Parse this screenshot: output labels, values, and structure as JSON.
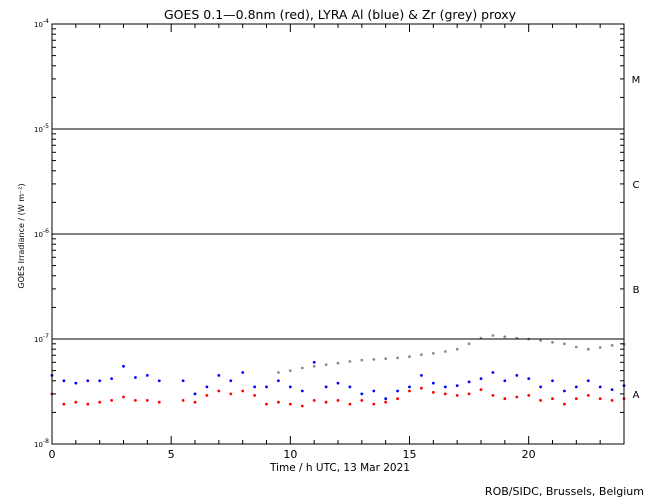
{
  "chart_data": {
    "type": "scatter",
    "title": "GOES 0.1—0.8nm (red), LYRA Al (blue) & Zr (grey) proxy",
    "xlabel": "Time / h UTC, 13 Mar 2021",
    "ylabel": "GOES Irradiance / (W m⁻²)",
    "xlim": [
      0,
      24
    ],
    "ylim": [
      1e-08,
      0.0001
    ],
    "yscale": "log",
    "grid": false,
    "x_ticks": [
      0,
      5,
      10,
      15,
      20
    ],
    "x_tick_labels": [
      "0",
      "5",
      "10",
      "15",
      "20"
    ],
    "y_tick_labels": [
      {
        "value": 1e-08,
        "base": "10",
        "exp": "-8"
      },
      {
        "value": 1e-07,
        "base": "10",
        "exp": "-7"
      },
      {
        "value": 1e-06,
        "base": "10",
        "exp": "-6"
      },
      {
        "value": 1e-05,
        "base": "10",
        "exp": "-5"
      },
      {
        "value": 0.0001,
        "base": "10",
        "exp": "-4"
      }
    ],
    "class_thresholds": [
      1e-07,
      1e-06,
      1e-05
    ],
    "class_labels": [
      {
        "label": "A",
        "value": 3e-08
      },
      {
        "label": "B",
        "value": 3e-07
      },
      {
        "label": "C",
        "value": 3e-06
      },
      {
        "label": "M",
        "value": 3e-05
      }
    ],
    "series": [
      {
        "color": "#ff0000",
        "x": [
          0.0,
          0.5,
          1.0,
          1.5,
          2.0,
          2.5,
          3.0,
          3.5,
          4.0,
          4.5,
          5.5,
          6.0,
          6.5,
          7.0,
          7.5,
          8.0,
          8.5,
          9.0,
          9.5,
          10.0,
          10.5,
          11.0,
          11.5,
          12.0,
          12.5,
          13.0,
          13.5,
          14.0,
          14.5,
          15.0,
          15.5,
          16.0,
          16.5,
          17.0,
          17.5,
          18.0,
          18.5,
          19.0,
          19.5,
          20.0,
          20.5,
          21.0,
          21.5,
          22.0,
          22.5,
          23.0,
          23.5,
          24.0
        ],
        "y": [
          3e-08,
          2.4e-08,
          2.5e-08,
          2.4e-08,
          2.5e-08,
          2.6e-08,
          2.8e-08,
          2.6e-08,
          2.6e-08,
          2.5e-08,
          2.6e-08,
          2.5e-08,
          2.9e-08,
          3.2e-08,
          3e-08,
          3.2e-08,
          2.9e-08,
          2.4e-08,
          2.5e-08,
          2.4e-08,
          2.3e-08,
          2.6e-08,
          2.5e-08,
          2.6e-08,
          2.4e-08,
          2.6e-08,
          2.4e-08,
          2.5e-08,
          2.7e-08,
          3.2e-08,
          3.4e-08,
          3.1e-08,
          3e-08,
          2.9e-08,
          3e-08,
          3.3e-08,
          2.9e-08,
          2.7e-08,
          2.8e-08,
          2.9e-08,
          2.6e-08,
          2.7e-08,
          2.4e-08,
          2.7e-08,
          2.9e-08,
          2.7e-08,
          2.6e-08,
          2.7e-08
        ]
      },
      {
        "color": "#0000ff",
        "x": [
          0.0,
          0.5,
          1.0,
          1.5,
          2.0,
          2.5,
          3.0,
          3.5,
          4.0,
          4.5,
          5.5,
          6.0,
          6.5,
          7.0,
          7.5,
          8.0,
          8.5,
          9.0,
          9.5,
          10.0,
          10.5,
          11.0,
          11.5,
          12.0,
          12.5,
          13.0,
          13.5,
          14.0,
          14.5,
          15.0,
          15.5,
          16.0,
          16.5,
          17.0,
          17.5,
          18.0,
          18.5,
          19.0,
          19.5,
          20.0,
          20.5,
          21.0,
          21.5,
          22.0,
          22.5,
          23.0,
          23.5,
          24.0
        ],
        "y": [
          4.5e-08,
          4e-08,
          3.8e-08,
          4e-08,
          4e-08,
          4.2e-08,
          5.5e-08,
          4.3e-08,
          4.5e-08,
          4e-08,
          4e-08,
          3e-08,
          3.5e-08,
          4.5e-08,
          4e-08,
          4.8e-08,
          3.5e-08,
          3.5e-08,
          4e-08,
          3.5e-08,
          3.2e-08,
          6e-08,
          3.5e-08,
          3.8e-08,
          3.5e-08,
          3e-08,
          3.2e-08,
          2.7e-08,
          3.2e-08,
          3.5e-08,
          4.5e-08,
          3.8e-08,
          3.5e-08,
          3.6e-08,
          3.9e-08,
          4.2e-08,
          4.8e-08,
          4e-08,
          4.5e-08,
          4.2e-08,
          3.5e-08,
          4e-08,
          3.2e-08,
          3.5e-08,
          4e-08,
          3.5e-08,
          3.3e-08,
          3.6e-08
        ]
      },
      {
        "color": "#8c8c8c",
        "x": [
          9.5,
          10.0,
          10.5,
          11.0,
          11.5,
          12.0,
          12.5,
          13.0,
          13.5,
          14.0,
          14.5,
          15.0,
          15.5,
          16.0,
          16.5,
          17.0,
          17.5,
          18.0,
          18.5,
          19.0,
          19.5,
          20.0,
          20.5,
          21.0,
          21.5,
          22.0,
          22.5,
          23.0,
          23.5,
          24.0
        ],
        "y": [
          4.8e-08,
          5e-08,
          5.3e-08,
          5.5e-08,
          5.7e-08,
          5.9e-08,
          6.1e-08,
          6.3e-08,
          6.4e-08,
          6.5e-08,
          6.6e-08,
          6.8e-08,
          7.1e-08,
          7.3e-08,
          7.6e-08,
          8e-08,
          9e-08,
          1.02e-07,
          1.08e-07,
          1.05e-07,
          1.02e-07,
          1e-07,
          9.7e-08,
          9.3e-08,
          9e-08,
          8.4e-08,
          8e-08,
          8.3e-08,
          8.7e-08,
          8.9e-08
        ]
      }
    ]
  },
  "credit": "ROB/SIDC, Brussels, Belgium"
}
